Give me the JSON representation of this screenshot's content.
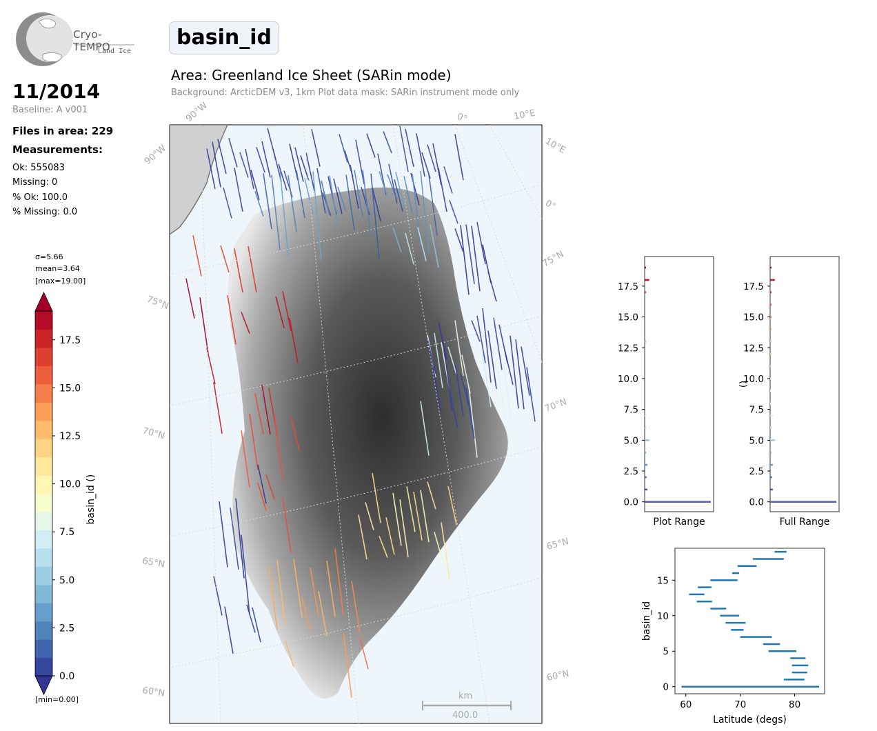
{
  "logo": {
    "name": "Cryo-TEMPO",
    "subtitle": "Land Ice"
  },
  "parameter": "basin_id",
  "area_title": "Area: Greenland Ice Sheet (SARin mode)",
  "background_note": "Background: ArcticDEM v3, 1km   Plot data mask: SARin instrument mode only",
  "date": "11/2014",
  "baseline": "Baseline: A v001",
  "files_in_area": "Files in area: 229",
  "measurements_label": "Measurements:",
  "stats": {
    "ok": "Ok: 555083",
    "missing": "Missing: 0",
    "pct_ok": "% Ok: 100.0",
    "pct_missing": "% Missing: 0.0"
  },
  "colorbar_stats": {
    "sigma": "σ=5.66",
    "mean": "mean=3.64",
    "max": "[max=19.00]",
    "min": "[min=0.00]"
  },
  "map": {
    "lat_labels": [
      "75°N",
      "70°N",
      "65°N",
      "60°N"
    ],
    "lon_labels": [
      "90°W",
      "0°",
      "10°E"
    ],
    "scale_unit": "km",
    "scale_value": "400.0"
  },
  "colors": {
    "low": "#313695",
    "mid": "#ffffbf",
    "high": "#a50026",
    "ice_grey": "#555555",
    "ocean": "#eef6fc",
    "hist_line": "#1f77b4"
  },
  "chart_data": [
    {
      "type": "colorbar",
      "label": "basin_id ()",
      "range": [
        0,
        19
      ],
      "ticks": [
        0.0,
        2.5,
        5.0,
        7.5,
        10.0,
        12.5,
        15.0,
        17.5
      ],
      "tick_labels": [
        "0.0",
        "2.5",
        "5.0",
        "7.5",
        "10.0",
        "12.5",
        "15.0",
        "17.5"
      ],
      "levels": 20,
      "colormap": "RdYlBu_r"
    },
    {
      "type": "bar",
      "title": "Plot Range",
      "orientation": "horizontal",
      "ylim": [
        -0.8,
        19.9
      ],
      "yticks": [
        "0.0",
        "2.5",
        "5.0",
        "7.5",
        "10.0",
        "12.5",
        "15.0",
        "17.5"
      ],
      "y": [
        0,
        1,
        2,
        3,
        4,
        5,
        6,
        7,
        13,
        17,
        18,
        19
      ],
      "values": [
        1.0,
        0.04,
        0.03,
        0.04,
        0.02,
        0.07,
        0.02,
        0.02,
        0.01,
        0.01,
        0.07,
        0.02
      ]
    },
    {
      "type": "bar",
      "title": "Full Range",
      "ylabel": "()",
      "orientation": "horizontal",
      "ylim": [
        -0.8,
        19.9
      ],
      "yticks": [
        "0.0",
        "2.5",
        "5.0",
        "7.5",
        "10.0",
        "12.5",
        "15.0",
        "17.5"
      ],
      "y": [
        0,
        1,
        2,
        3,
        4,
        5,
        6,
        7,
        8,
        9,
        10,
        11,
        12,
        13,
        14,
        15,
        16,
        17,
        18,
        19
      ],
      "values": [
        1.0,
        0.04,
        0.03,
        0.04,
        0.02,
        0.07,
        0.02,
        0.04,
        0.02,
        0.02,
        0.02,
        0.02,
        0.02,
        0.02,
        0.02,
        0.02,
        0.02,
        0.02,
        0.07,
        0.02
      ]
    },
    {
      "type": "range",
      "xlabel": "Latitude (degs)",
      "ylabel": "basin_id",
      "xlim": [
        58,
        85.5
      ],
      "ylim": [
        -1,
        19.5
      ],
      "xticks": [
        "60",
        "70",
        "80"
      ],
      "yticks": [
        "0",
        "5",
        "10",
        "15"
      ],
      "series": [
        {
          "y": 0,
          "x": [
            59.2,
            84.5
          ]
        },
        {
          "y": 1,
          "x": [
            78.0,
            81.8
          ]
        },
        {
          "y": 2,
          "x": [
            79.5,
            82.3
          ]
        },
        {
          "y": 3,
          "x": [
            79.5,
            82.5
          ]
        },
        {
          "y": 4,
          "x": [
            79.2,
            82.0
          ]
        },
        {
          "y": 5,
          "x": [
            75.2,
            80.3
          ]
        },
        {
          "y": 6,
          "x": [
            74.2,
            77.3
          ]
        },
        {
          "y": 7,
          "x": [
            70.0,
            75.8
          ]
        },
        {
          "y": 8,
          "x": [
            68.3,
            70.6
          ]
        },
        {
          "y": 9,
          "x": [
            67.3,
            71.0
          ]
        },
        {
          "y": 10,
          "x": [
            66.3,
            69.8
          ]
        },
        {
          "y": 11,
          "x": [
            64.5,
            67.4
          ]
        },
        {
          "y": 12,
          "x": [
            62.0,
            64.8
          ]
        },
        {
          "y": 13,
          "x": [
            60.6,
            63.4
          ]
        },
        {
          "y": 14,
          "x": [
            62.2,
            64.7
          ]
        },
        {
          "y": 15,
          "x": [
            64.5,
            69.5
          ]
        },
        {
          "y": 16,
          "x": [
            68.5,
            69.8
          ]
        },
        {
          "y": 17,
          "x": [
            69.5,
            73.0
          ]
        },
        {
          "y": 18,
          "x": [
            72.3,
            78.0
          ]
        },
        {
          "y": 19,
          "x": [
            76.3,
            78.5
          ]
        }
      ]
    }
  ]
}
